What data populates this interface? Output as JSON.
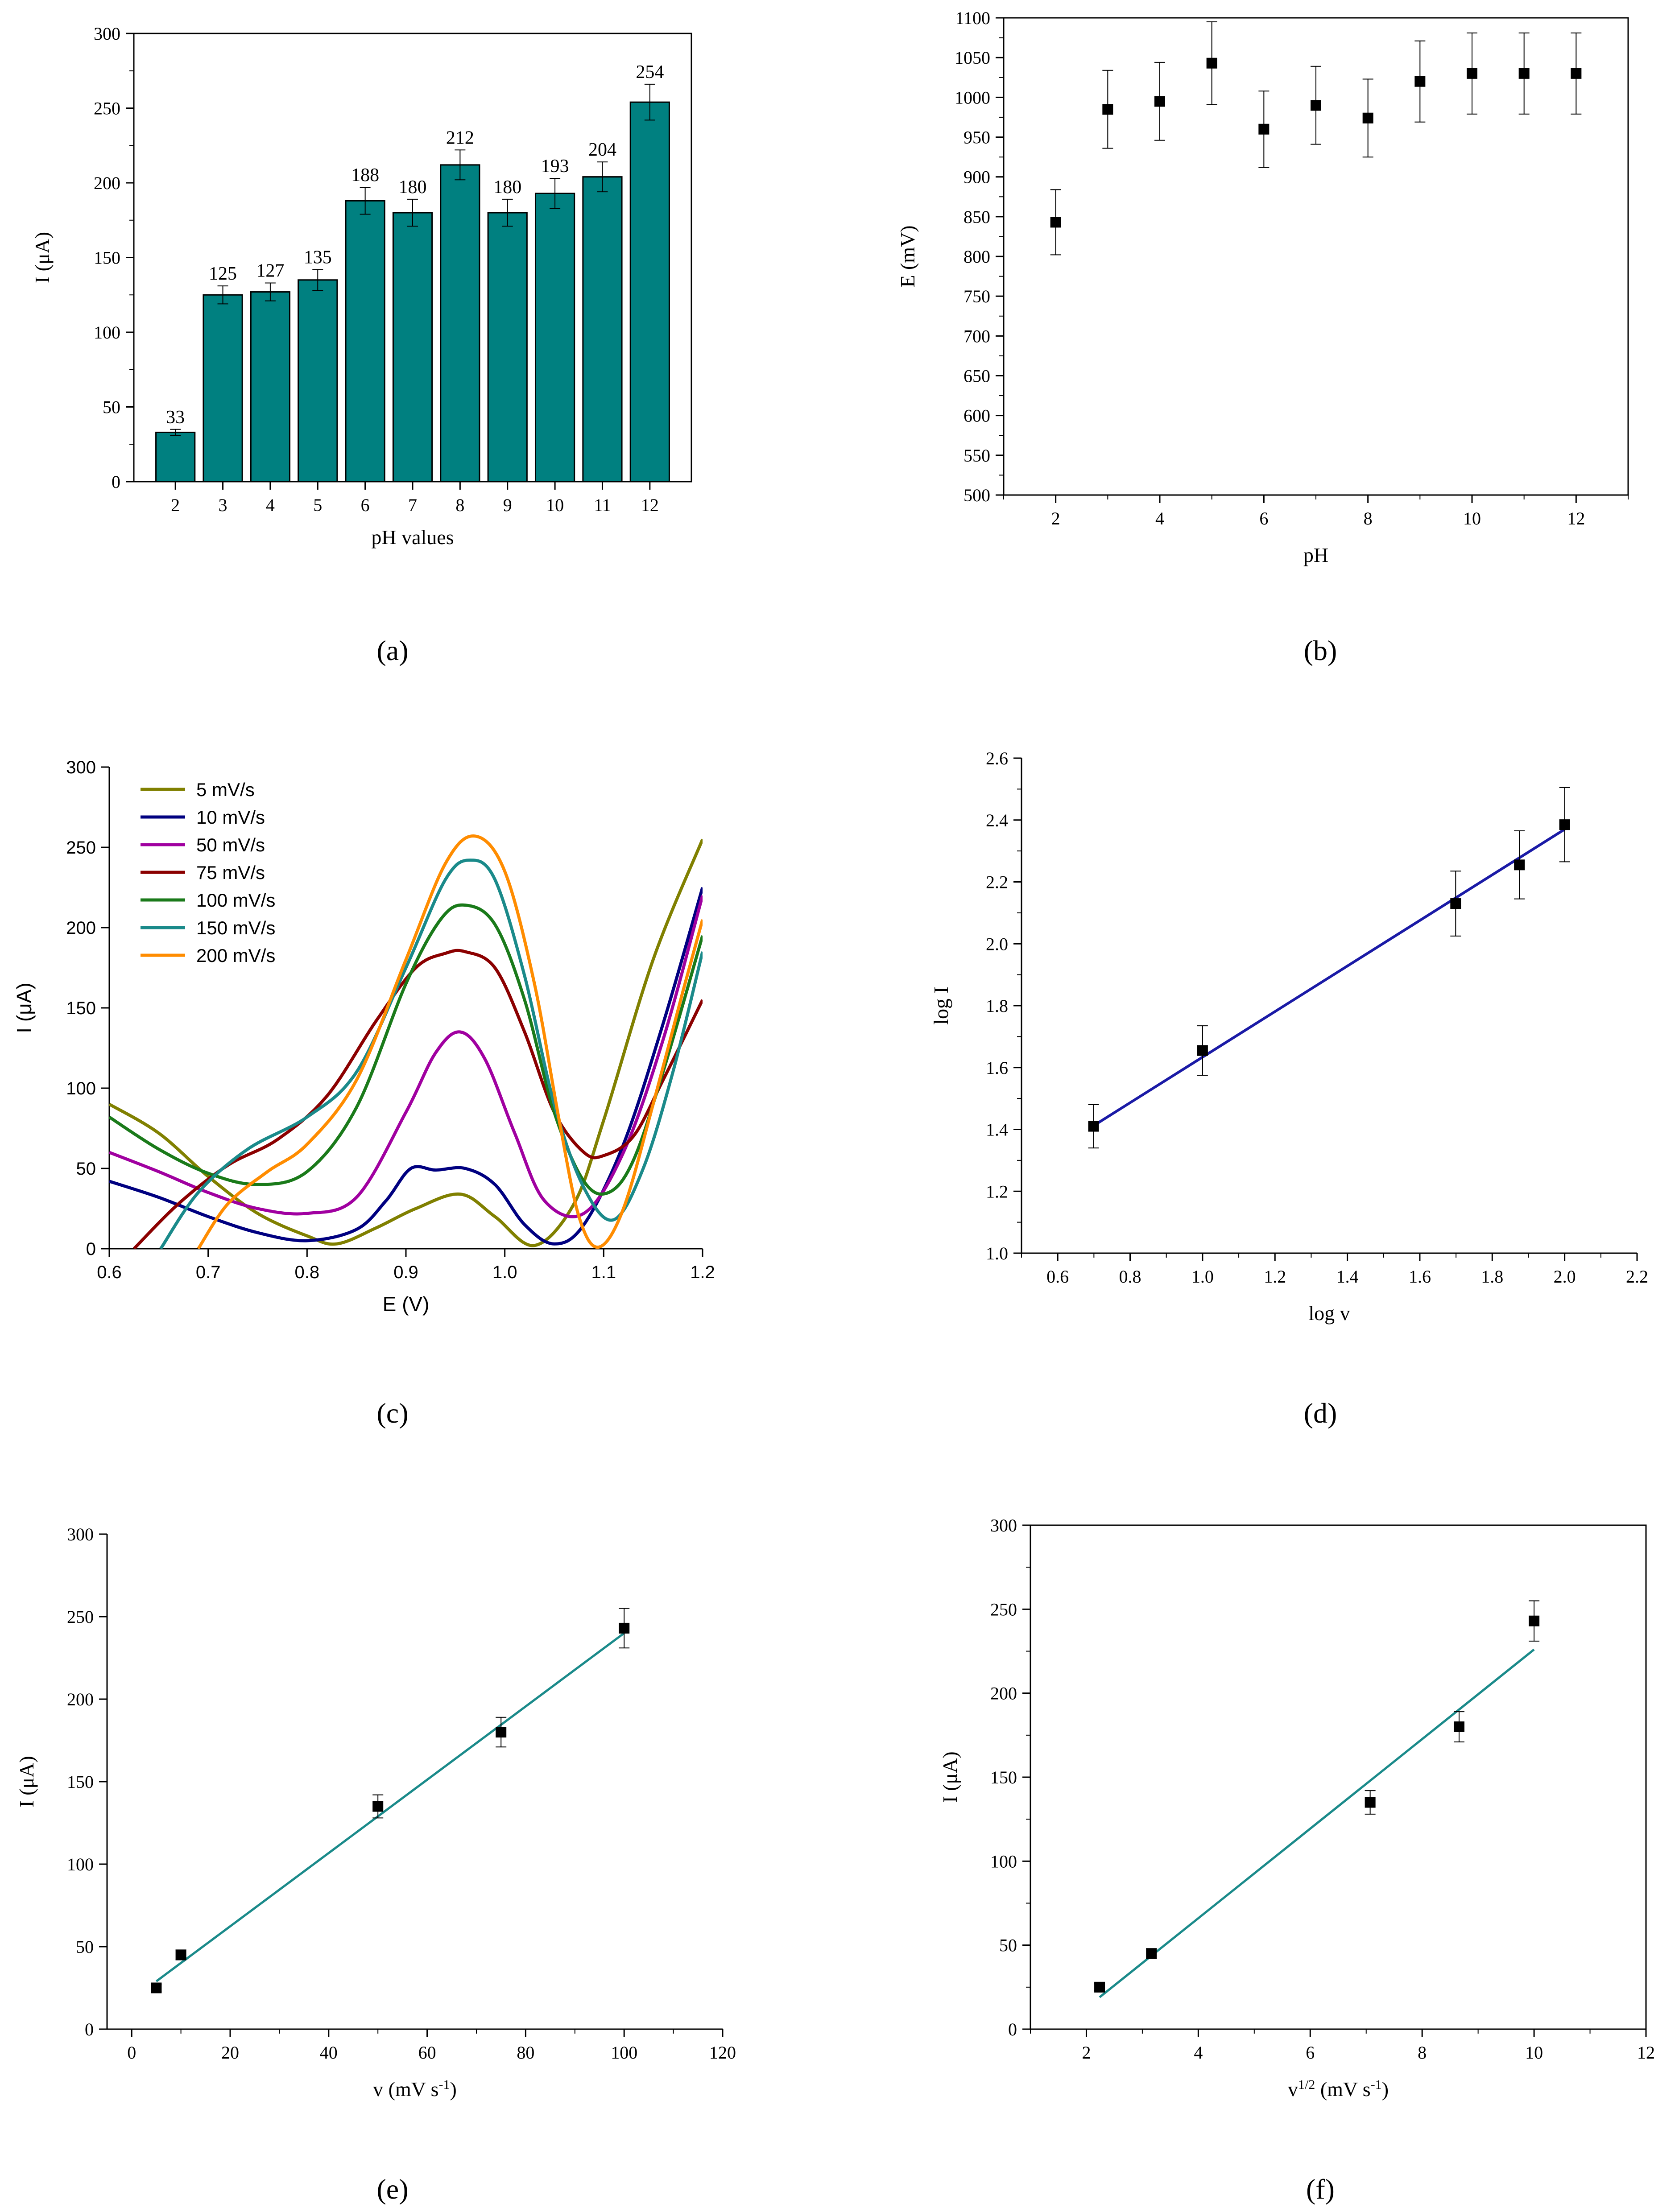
{
  "panel_letters": {
    "a": "(a)",
    "b": "(b)",
    "c": "(c)",
    "d": "(d)",
    "e": "(e)",
    "f": "(f)"
  },
  "colors": {
    "bar": "#008080",
    "fit_blue": "#1a1aa6",
    "fit_teal": "#1a8a8a",
    "marker": "#000000"
  },
  "chart_data": [
    {
      "id": "a",
      "type": "bar",
      "xlabel": "pH values",
      "ylabel": "I (μA)",
      "categories": [
        "2",
        "3",
        "4",
        "5",
        "6",
        "7",
        "8",
        "9",
        "10",
        "11",
        "12"
      ],
      "values": [
        33,
        125,
        127,
        135,
        188,
        180,
        212,
        180,
        193,
        204,
        254
      ],
      "errors": [
        2,
        6,
        6,
        7,
        9,
        9,
        10,
        9,
        10,
        10,
        12
      ],
      "value_labels": [
        "33",
        "125",
        "127",
        "135",
        "188",
        "180",
        "212",
        "180",
        "193",
        "204",
        "254"
      ],
      "ylim": [
        0,
        300
      ],
      "yticks": [
        "0",
        "50",
        "100",
        "150",
        "200",
        "250",
        "300"
      ]
    },
    {
      "id": "b",
      "type": "scatter",
      "xlabel": "pH",
      "ylabel": "E (mV)",
      "x": [
        2,
        3,
        4,
        5,
        6,
        7,
        8,
        9,
        10,
        11,
        12
      ],
      "y": [
        843,
        985,
        995,
        1043,
        960,
        990,
        974,
        1020,
        1030,
        1030,
        1030
      ],
      "errors": [
        41,
        49,
        49,
        52,
        48,
        49,
        49,
        51,
        51,
        51,
        51
      ],
      "xlim": [
        1,
        13
      ],
      "ylim": [
        500,
        1100
      ],
      "xticks": [
        "2",
        "4",
        "6",
        "8",
        "10",
        "12"
      ],
      "yticks": [
        "500",
        "550",
        "600",
        "650",
        "700",
        "750",
        "800",
        "850",
        "900",
        "950",
        "1000",
        "1050",
        "1100"
      ]
    },
    {
      "id": "c",
      "type": "line",
      "xlabel": "E (V)",
      "ylabel": "I (μA)",
      "xlim": [
        0.6,
        1.2
      ],
      "ylim": [
        0,
        300
      ],
      "xticks": [
        "0.6",
        "0.7",
        "0.8",
        "0.9",
        "1.0",
        "1.1",
        "1.2"
      ],
      "yticks": [
        "0",
        "50",
        "100",
        "150",
        "200",
        "250",
        "300"
      ],
      "legend_position": "top-left",
      "series": [
        {
          "name": "5 mV/s",
          "color": "#808000",
          "x": [
            0.6,
            0.65,
            0.7,
            0.75,
            0.8,
            0.83,
            0.87,
            0.91,
            0.955,
            0.99,
            1.03,
            1.07,
            1.1,
            1.15,
            1.2
          ],
          "y": [
            90,
            72,
            45,
            22,
            8,
            3,
            13,
            25,
            34,
            20,
            2,
            28,
            80,
            180,
            255
          ]
        },
        {
          "name": "10 mV/s",
          "color": "#000080",
          "x": [
            0.6,
            0.65,
            0.7,
            0.75,
            0.8,
            0.85,
            0.88,
            0.905,
            0.93,
            0.96,
            0.99,
            1.02,
            1.05,
            1.08,
            1.12,
            1.16,
            1.2
          ],
          "y": [
            42,
            32,
            20,
            10,
            5,
            12,
            30,
            50,
            49,
            50,
            40,
            15,
            3,
            15,
            65,
            140,
            225
          ]
        },
        {
          "name": "50 mV/s",
          "color": "#a000a0",
          "x": [
            0.6,
            0.65,
            0.7,
            0.75,
            0.8,
            0.85,
            0.9,
            0.93,
            0.955,
            0.98,
            1.01,
            1.04,
            1.08,
            1.12,
            1.16,
            1.2
          ],
          "y": [
            60,
            48,
            35,
            25,
            22,
            32,
            85,
            122,
            135,
            118,
            72,
            30,
            22,
            60,
            130,
            220
          ]
        },
        {
          "name": "75 mV/s",
          "color": "#8b0000",
          "x": [
            0.625,
            0.67,
            0.72,
            0.77,
            0.82,
            0.87,
            0.91,
            0.94,
            0.96,
            0.99,
            1.02,
            1.05,
            1.08,
            1.1,
            1.13,
            1.16,
            1.2
          ],
          "y": [
            0,
            28,
            52,
            68,
            95,
            142,
            175,
            184,
            185,
            175,
            135,
            85,
            60,
            58,
            70,
            105,
            155
          ]
        },
        {
          "name": "100 mV/s",
          "color": "#1a7a1a",
          "x": [
            0.6,
            0.65,
            0.7,
            0.75,
            0.8,
            0.85,
            0.9,
            0.935,
            0.96,
            0.99,
            1.02,
            1.05,
            1.08,
            1.105,
            1.13,
            1.16,
            1.2
          ],
          "y": [
            82,
            62,
            47,
            40,
            48,
            88,
            165,
            205,
            214,
            202,
            155,
            85,
            42,
            35,
            55,
            110,
            195
          ]
        },
        {
          "name": "150 mV/s",
          "color": "#1a8a8a",
          "x": [
            0.652,
            0.69,
            0.74,
            0.8,
            0.85,
            0.9,
            0.94,
            0.965,
            0.99,
            1.02,
            1.05,
            1.08,
            1.11,
            1.14,
            1.17,
            1.2
          ],
          "y": [
            0,
            35,
            62,
            82,
            110,
            175,
            230,
            242,
            230,
            170,
            90,
            38,
            18,
            50,
            110,
            185
          ]
        },
        {
          "name": "200 mV/s",
          "color": "#ff8c00",
          "x": [
            0.69,
            0.72,
            0.76,
            0.8,
            0.85,
            0.9,
            0.94,
            0.97,
            1.0,
            1.03,
            1.055,
            1.075,
            1.095,
            1.12,
            1.15,
            1.18,
            1.2
          ],
          "y": [
            0,
            28,
            48,
            65,
            105,
            180,
            240,
            257,
            235,
            165,
            80,
            20,
            1,
            25,
            90,
            160,
            205
          ]
        }
      ]
    },
    {
      "id": "d",
      "type": "scatter",
      "xlabel": "log v",
      "ylabel": "log I",
      "x": [
        0.699,
        1.0,
        1.699,
        1.875,
        2.0
      ],
      "y": [
        1.41,
        1.655,
        2.13,
        2.255,
        2.385
      ],
      "errors": [
        0.07,
        0.08,
        0.105,
        0.11,
        0.12
      ],
      "fit": {
        "x": [
          0.699,
          2.0
        ],
        "y": [
          1.412,
          2.37
        ]
      },
      "xlim": [
        0.5,
        2.2
      ],
      "ylim": [
        1.0,
        2.6
      ],
      "xticks": [
        "0.6",
        "0.8",
        "1.0",
        "1.2",
        "1.4",
        "1.6",
        "1.8",
        "2.0",
        "2.2"
      ],
      "yticks": [
        "1.0",
        "1.2",
        "1.4",
        "1.6",
        "1.8",
        "2.0",
        "2.2",
        "2.4",
        "2.6"
      ]
    },
    {
      "id": "e",
      "type": "scatter",
      "xlabel": "v (mV s",
      "xlabel_sup": "-1",
      "xlabel_end": ")",
      "ylabel": "I (μA)",
      "x": [
        5,
        10,
        50,
        75,
        100
      ],
      "y": [
        25,
        45,
        135,
        180,
        243
      ],
      "errors": [
        2,
        3,
        7,
        9,
        12
      ],
      "fit": {
        "x": [
          5,
          100
        ],
        "y": [
          29,
          240
        ]
      },
      "xlim": [
        -5,
        120
      ],
      "ylim": [
        0,
        300
      ],
      "xticks": [
        "0",
        "20",
        "40",
        "60",
        "80",
        "100",
        "120"
      ],
      "yticks": [
        "0",
        "50",
        "100",
        "150",
        "200",
        "250",
        "300"
      ]
    },
    {
      "id": "f",
      "type": "scatter",
      "xlabel": "v",
      "xlabel_sup": "1/2",
      "xlabel_end": " (mV s",
      "xlabel_sup2": "-1",
      "xlabel_end2": ")",
      "ylabel": "I (μA)",
      "x": [
        2.236,
        3.162,
        7.071,
        8.66,
        10.0
      ],
      "y": [
        25,
        45,
        135,
        180,
        243
      ],
      "errors": [
        2,
        3,
        7,
        9,
        12
      ],
      "fit": {
        "x": [
          2.236,
          10.0
        ],
        "y": [
          19,
          226
        ]
      },
      "xlim": [
        1,
        12
      ],
      "ylim": [
        0,
        300
      ],
      "xticks": [
        "2",
        "4",
        "6",
        "8",
        "10",
        "12"
      ],
      "yticks": [
        "0",
        "50",
        "100",
        "150",
        "200",
        "250",
        "300"
      ]
    }
  ]
}
